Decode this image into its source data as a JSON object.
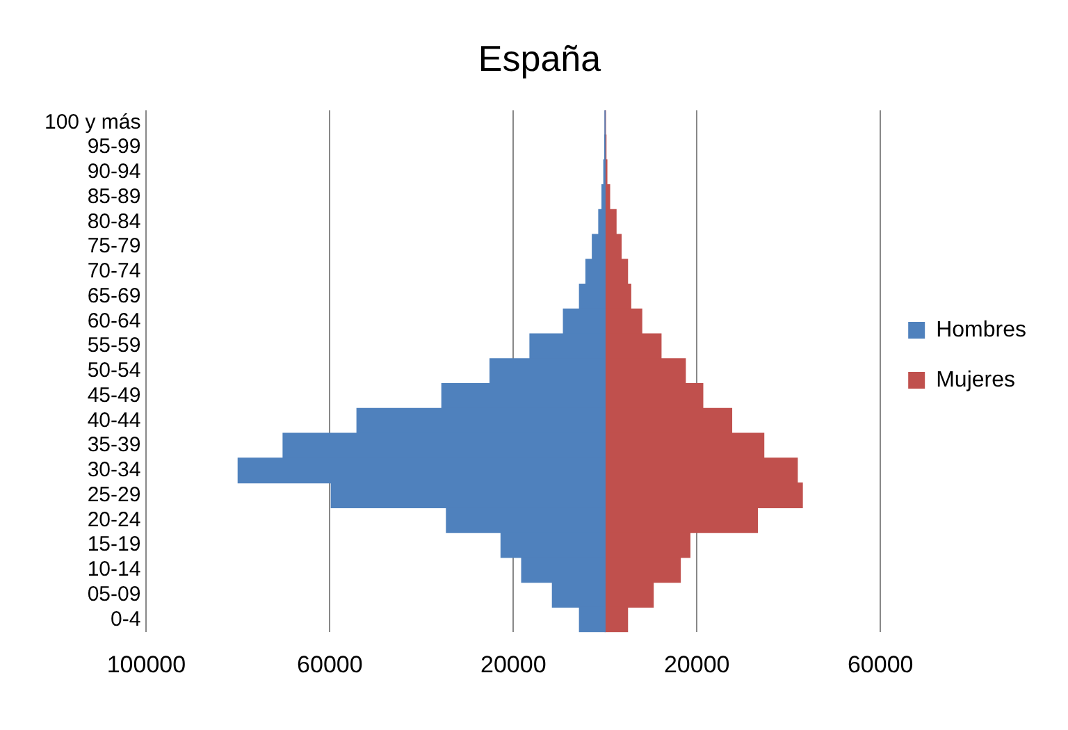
{
  "chart_data": {
    "type": "bar",
    "title": "España",
    "orientation": "horizontal",
    "stacked": true,
    "categories": [
      "100 y más",
      "95-99",
      "90-94",
      "85-89",
      "80-84",
      "75-79",
      "70-74",
      "65-69",
      "60-64",
      "55-59",
      "50-54",
      "45-49",
      "40-44",
      "35-39",
      "30-34",
      "25-29",
      "20-24",
      "15-19",
      "10-14",
      "05-09",
      "0-4"
    ],
    "series": [
      {
        "name": "Hombres",
        "color": "#4f81bd",
        "values": [
          -50,
          -100,
          -300,
          -700,
          -1400,
          -2800,
          -4200,
          -5600,
          -9100,
          -16400,
          -25100,
          -35600,
          -54100,
          -70200,
          -80000,
          -59700,
          -34600,
          -22700,
          -18200,
          -11500,
          -5600
        ]
      },
      {
        "name": "Mujeres",
        "color": "#c0504d",
        "values": [
          100,
          200,
          400,
          1000,
          2400,
          3500,
          4900,
          5600,
          8000,
          12200,
          17500,
          21300,
          27600,
          34600,
          41900,
          43000,
          33200,
          18500,
          16400,
          10500,
          4900
        ]
      }
    ],
    "xlim": [
      -100000,
      60000
    ],
    "xticks": [
      {
        "value": -100000,
        "label": "100000"
      },
      {
        "value": -60000,
        "label": "60000"
      },
      {
        "value": -20000,
        "label": "20000"
      },
      {
        "value": 20000,
        "label": "20000"
      },
      {
        "value": 60000,
        "label": "60000"
      }
    ],
    "grid": "x",
    "legend": "right"
  }
}
